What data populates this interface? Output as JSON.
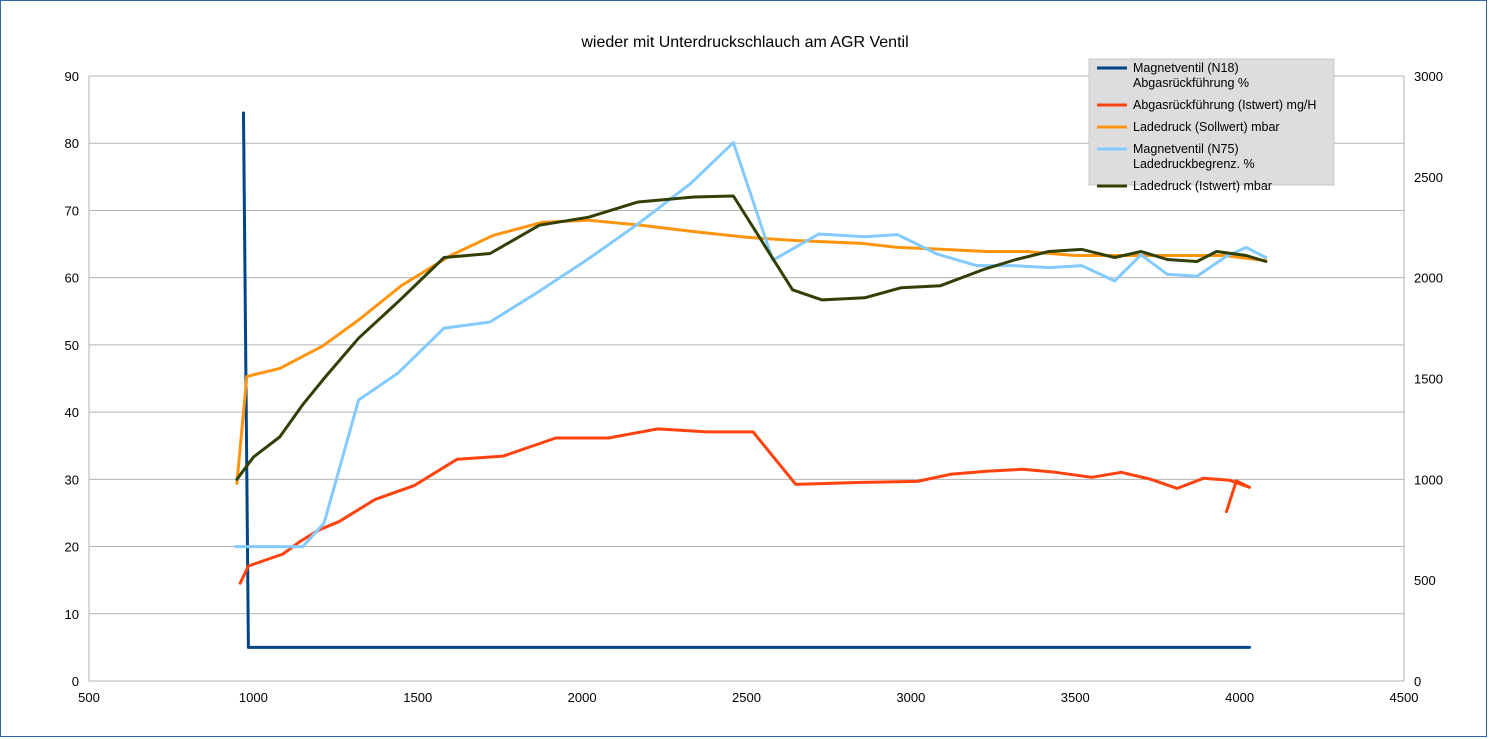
{
  "chart_data": {
    "type": "line",
    "title": "wieder mit Unterdruckschlauch am AGR Ventil",
    "x_axis": {
      "min": 500,
      "max": 4500,
      "ticks": [
        500,
        1000,
        1500,
        2000,
        2500,
        3000,
        3500,
        4000,
        4500
      ]
    },
    "y_axis_left": {
      "min": 0,
      "max": 90,
      "ticks": [
        0,
        10,
        20,
        30,
        40,
        50,
        60,
        70,
        80,
        90
      ]
    },
    "y_axis_right": {
      "min": 0,
      "max": 3000,
      "ticks": [
        0,
        500,
        1000,
        1500,
        2000,
        2500,
        3000
      ]
    },
    "grid": true,
    "legend_position": "top-right",
    "series": [
      {
        "name_lines": [
          "Magnetventil (N18)",
          "Abgasrückführung  %"
        ],
        "color": "#004586",
        "axis": "left",
        "points": [
          [
            970,
            84.5
          ],
          [
            985,
            5
          ],
          [
            1100,
            5
          ],
          [
            1500,
            5
          ],
          [
            2000,
            5
          ],
          [
            2500,
            5
          ],
          [
            3000,
            5
          ],
          [
            3500,
            5
          ],
          [
            4000,
            5
          ],
          [
            4030,
            5
          ]
        ]
      },
      {
        "name_lines": [
          "Abgasrückführung (Istwert)  mg/H"
        ],
        "color": "#ff420e",
        "axis": "right",
        "points": [
          [
            960,
            485
          ],
          [
            985,
            570
          ],
          [
            1090,
            630
          ],
          [
            1140,
            690
          ],
          [
            1200,
            750
          ],
          [
            1260,
            790
          ],
          [
            1370,
            900
          ],
          [
            1490,
            970
          ],
          [
            1620,
            1100
          ],
          [
            1760,
            1115
          ],
          [
            1920,
            1205
          ],
          [
            2080,
            1205
          ],
          [
            2230,
            1250
          ],
          [
            2380,
            1235
          ],
          [
            2520,
            1235
          ],
          [
            2650,
            975
          ],
          [
            2850,
            985
          ],
          [
            3020,
            990
          ],
          [
            3120,
            1025
          ],
          [
            3230,
            1040
          ],
          [
            3340,
            1050
          ],
          [
            3440,
            1035
          ],
          [
            3550,
            1010
          ],
          [
            3640,
            1035
          ],
          [
            3730,
            1000
          ],
          [
            3810,
            955
          ],
          [
            3890,
            1005
          ],
          [
            3970,
            995
          ],
          [
            4030,
            960
          ],
          [
            3990,
            992
          ],
          [
            3960,
            840
          ]
        ]
      },
      {
        "name_lines": [
          "Ladedruck (Sollwert)  mbar"
        ],
        "color": "#ff950e",
        "axis": "right",
        "points": [
          [
            950,
            980
          ],
          [
            980,
            1510
          ],
          [
            1080,
            1550
          ],
          [
            1210,
            1660
          ],
          [
            1320,
            1790
          ],
          [
            1450,
            1960
          ],
          [
            1600,
            2110
          ],
          [
            1730,
            2210
          ],
          [
            1880,
            2275
          ],
          [
            2020,
            2285
          ],
          [
            2180,
            2260
          ],
          [
            2330,
            2230
          ],
          [
            2500,
            2200
          ],
          [
            2640,
            2185
          ],
          [
            2850,
            2170
          ],
          [
            2960,
            2150
          ],
          [
            3100,
            2140
          ],
          [
            3230,
            2130
          ],
          [
            3350,
            2130
          ],
          [
            3500,
            2110
          ],
          [
            3650,
            2110
          ],
          [
            3800,
            2110
          ],
          [
            3950,
            2110
          ],
          [
            4080,
            2085
          ]
        ]
      },
      {
        "name_lines": [
          "Magnetventil (N75)",
          "Ladedruckbegrenz.  %"
        ],
        "color": "#83caff",
        "axis": "left",
        "points": [
          [
            945,
            20
          ],
          [
            985,
            20
          ],
          [
            1050,
            20
          ],
          [
            1100,
            20
          ],
          [
            1150,
            20
          ],
          [
            1215,
            23.5
          ],
          [
            1320,
            41.8
          ],
          [
            1440,
            45.8
          ],
          [
            1580,
            52.5
          ],
          [
            1720,
            53.4
          ],
          [
            1870,
            58
          ],
          [
            2010,
            62.5
          ],
          [
            2170,
            68
          ],
          [
            2330,
            74
          ],
          [
            2460,
            80.1
          ],
          [
            2580,
            62.6
          ],
          [
            2720,
            66.5
          ],
          [
            2860,
            66.1
          ],
          [
            2960,
            66.4
          ],
          [
            3080,
            63.5
          ],
          [
            3200,
            61.8
          ],
          [
            3310,
            61.8
          ],
          [
            3420,
            61.5
          ],
          [
            3520,
            61.8
          ],
          [
            3620,
            59.5
          ],
          [
            3700,
            63.4
          ],
          [
            3780,
            60.5
          ],
          [
            3870,
            60.2
          ],
          [
            3960,
            63.2
          ],
          [
            4020,
            64.5
          ],
          [
            4080,
            63
          ]
        ]
      },
      {
        "name_lines": [
          "Ladedruck (Istwert)  mbar"
        ],
        "color": "#314004",
        "axis": "right",
        "points": [
          [
            950,
            1000
          ],
          [
            1000,
            1110
          ],
          [
            1080,
            1210
          ],
          [
            1150,
            1370
          ],
          [
            1220,
            1510
          ],
          [
            1320,
            1700
          ],
          [
            1440,
            1880
          ],
          [
            1580,
            2100
          ],
          [
            1720,
            2120
          ],
          [
            1870,
            2260
          ],
          [
            2020,
            2300
          ],
          [
            2170,
            2375
          ],
          [
            2340,
            2400
          ],
          [
            2460,
            2405
          ],
          [
            2640,
            1940
          ],
          [
            2730,
            1890
          ],
          [
            2860,
            1900
          ],
          [
            2970,
            1950
          ],
          [
            3090,
            1960
          ],
          [
            3220,
            2040
          ],
          [
            3320,
            2090
          ],
          [
            3420,
            2130
          ],
          [
            3520,
            2140
          ],
          [
            3620,
            2100
          ],
          [
            3700,
            2130
          ],
          [
            3780,
            2090
          ],
          [
            3870,
            2080
          ],
          [
            3930,
            2130
          ],
          [
            4020,
            2110
          ],
          [
            4080,
            2080
          ]
        ]
      }
    ]
  }
}
